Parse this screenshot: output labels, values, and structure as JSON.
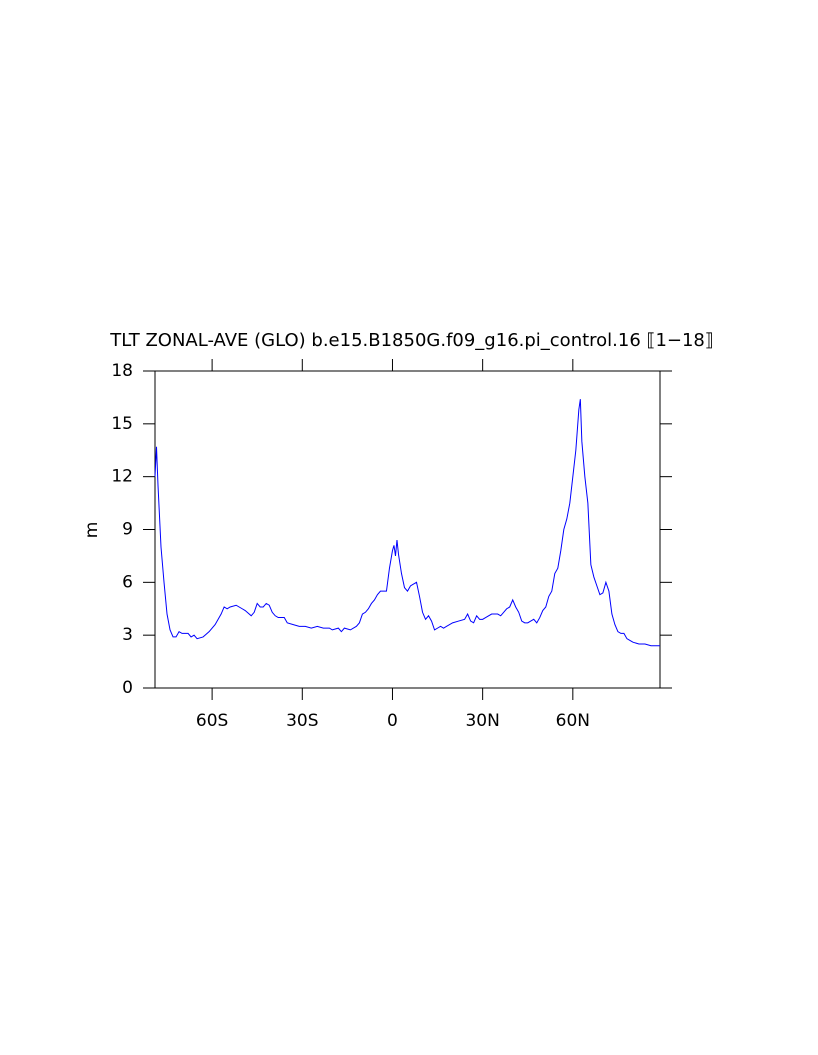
{
  "chart_data": {
    "type": "line",
    "title": "TLT ZONAL-AVE (GLO) b.e15.B1850G.f09_g16.pi_control.16 ⟦1−18⟧",
    "y_label": "m",
    "xlim": [
      -79,
      89
    ],
    "ylim": [
      0,
      18
    ],
    "xticks": [
      {
        "value": -60,
        "label": "60S"
      },
      {
        "value": -30,
        "label": "30S"
      },
      0,
      {
        "value": 30,
        "label": "30N"
      },
      {
        "value": 60,
        "label": "60N"
      }
    ],
    "yticks": [
      0,
      3,
      6,
      9,
      12,
      15,
      18
    ],
    "grid": false,
    "x": [
      -79,
      -78.5,
      -78,
      -77,
      -76,
      -75,
      -74,
      -73,
      -72,
      -71,
      -70,
      -68,
      -67,
      -66,
      -65,
      -63,
      -61,
      -59,
      -57,
      -56,
      -55,
      -54,
      -52,
      -50,
      -49,
      -47,
      -46,
      -45,
      -44,
      -43,
      -42,
      -41,
      -40,
      -39,
      -38,
      -36,
      -35,
      -33,
      -31,
      -29,
      -27,
      -25,
      -23,
      -21,
      -20,
      -18,
      -17,
      -16,
      -14,
      -12,
      -11,
      -10,
      -9,
      -8,
      -7,
      -6,
      -5,
      -4,
      -3,
      -2,
      -1,
      0,
      0.5,
      1,
      1.5,
      2,
      3,
      4,
      5,
      6,
      7,
      8,
      9,
      10,
      11,
      12,
      13,
      14,
      15,
      16,
      17,
      18,
      20,
      22,
      24,
      25,
      26,
      27,
      28,
      29,
      30,
      31,
      33,
      35,
      36,
      37,
      38,
      39,
      40,
      41,
      42,
      43,
      44,
      45,
      46,
      47,
      48,
      49,
      50,
      51,
      52,
      53,
      54,
      55,
      56,
      57,
      58,
      59,
      60,
      61,
      62,
      62.5,
      63,
      64,
      65,
      66,
      67,
      68,
      69,
      70,
      71,
      72,
      73,
      74,
      75,
      76,
      77,
      78,
      79,
      80,
      82,
      84,
      86,
      88,
      89
    ],
    "series": [
      {
        "name": "TLT",
        "color": "#0000ff",
        "values": [
          12.0,
          13.7,
          11.5,
          8,
          6,
          4.2,
          3.3,
          2.9,
          2.9,
          3.2,
          3.1,
          3.1,
          2.9,
          3.0,
          2.8,
          2.9,
          3.2,
          3.6,
          4.2,
          4.6,
          4.5,
          4.6,
          4.7,
          4.5,
          4.4,
          4.1,
          4.3,
          4.8,
          4.6,
          4.6,
          4.8,
          4.7,
          4.3,
          4.1,
          4.0,
          4.0,
          3.7,
          3.6,
          3.5,
          3.5,
          3.4,
          3.5,
          3.4,
          3.4,
          3.3,
          3.4,
          3.2,
          3.4,
          3.3,
          3.5,
          3.7,
          4.2,
          4.3,
          4.5,
          4.8,
          5.0,
          5.3,
          5.5,
          5.5,
          5.5,
          6.8,
          7.8,
          8.1,
          7.5,
          8.4,
          7.6,
          6.5,
          5.7,
          5.5,
          5.8,
          5.9,
          6.0,
          5.2,
          4.3,
          3.9,
          4.1,
          3.8,
          3.3,
          3.4,
          3.5,
          3.4,
          3.5,
          3.7,
          3.8,
          3.9,
          4.2,
          3.8,
          3.7,
          4.1,
          3.9,
          3.9,
          4.0,
          4.2,
          4.2,
          4.1,
          4.3,
          4.5,
          4.6,
          5.0,
          4.6,
          4.3,
          3.8,
          3.7,
          3.7,
          3.8,
          3.9,
          3.7,
          4.0,
          4.4,
          4.6,
          5.2,
          5.5,
          6.5,
          6.8,
          7.8,
          9.0,
          9.6,
          10.5,
          12.0,
          13.5,
          15.8,
          16.4,
          14.0,
          12.0,
          10.5,
          7.0,
          6.3,
          5.8,
          5.3,
          5.4,
          6.0,
          5.5,
          4.2,
          3.6,
          3.2,
          3.1,
          3.1,
          2.8,
          2.7,
          2.6,
          2.5,
          2.5,
          2.4,
          2.4,
          2.4
        ]
      }
    ]
  }
}
